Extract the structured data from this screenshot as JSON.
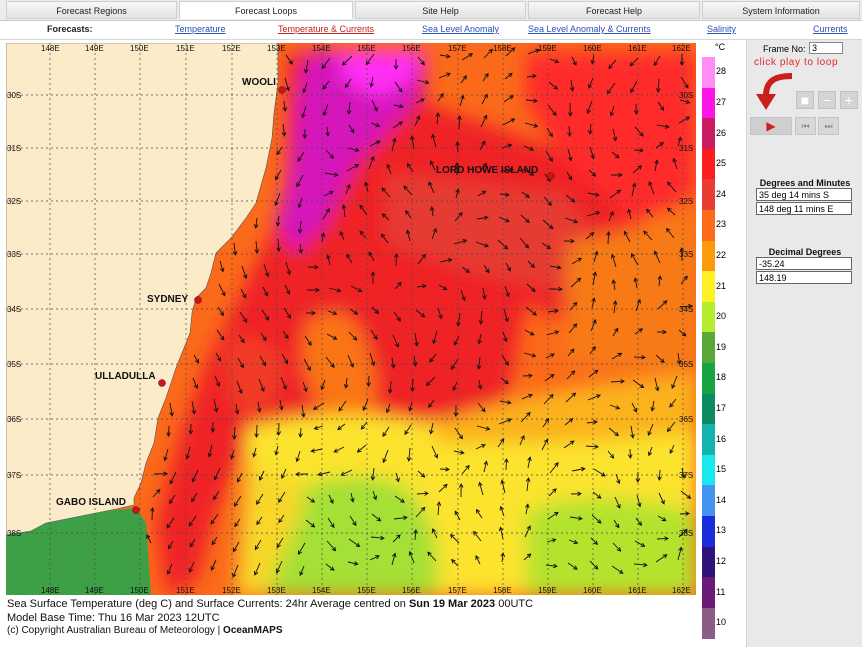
{
  "top_tabs": [
    {
      "label": "Forecast Regions"
    },
    {
      "label": "Forecast Loops"
    },
    {
      "label": "Site Help"
    },
    {
      "label": "Forecast Help"
    },
    {
      "label": "System Information"
    }
  ],
  "subnav": {
    "forecasts_label": "Forecasts:",
    "links": [
      {
        "label": "Temperature"
      },
      {
        "label": "Temperature & Currents"
      },
      {
        "label": "Sea Level Anomaly"
      },
      {
        "label": "Sea Level Anomaly & Currents"
      },
      {
        "label": "Salinity"
      },
      {
        "label": "Currents"
      }
    ]
  },
  "map": {
    "lon_labels": [
      "148E",
      "149E",
      "150E",
      "151E",
      "152E",
      "153E",
      "154E",
      "155E",
      "156E",
      "157E",
      "158E",
      "159E",
      "160E",
      "161E",
      "162E"
    ],
    "lat_labels": [
      "30S",
      "31S",
      "32S",
      "33S",
      "34S",
      "35S",
      "36S",
      "37S",
      "38S"
    ],
    "places": [
      {
        "name": "WOOLI"
      },
      {
        "name": "LORD HOWE ISLAND"
      },
      {
        "name": "SYDNEY"
      },
      {
        "name": "ULLADULLA"
      },
      {
        "name": "GABO ISLAND"
      }
    ],
    "colors": {
      "land": "#fcebc9",
      "coast_green": "#3ca048",
      "sea_orange": "#fd6e19",
      "sea_red": "#f0222b",
      "sea_magenta": "#d316b6",
      "sea_yellow": "#fdf42e",
      "sea_lime": "#a7e035"
    }
  },
  "colorbar": {
    "unit": "°C",
    "labels": [
      "28",
      "27",
      "26",
      "25",
      "24",
      "23",
      "22",
      "21",
      "20",
      "19",
      "18",
      "17",
      "16",
      "15",
      "14",
      "13",
      "12",
      "11",
      "10"
    ],
    "colors": [
      "#ff8df5",
      "#ff14e8",
      "#c91c62",
      "#fb1e1e",
      "#ea3c31",
      "#fc6b17",
      "#fc9a0e",
      "#fff026",
      "#b6ec2d",
      "#5aa838",
      "#18a442",
      "#0d8a62",
      "#13b4b0",
      "#19e9ef",
      "#4493ef",
      "#1a2cdc",
      "#2d137a",
      "#6b1a78",
      "#8d5c86"
    ]
  },
  "panel": {
    "frame_label": "Frame No:",
    "frame_value": "3",
    "hint": "click play to loop",
    "controls": {
      "stop": "■",
      "minus": "−",
      "plus": "+",
      "play": "▶",
      "prev": "⏮",
      "next": "⏭"
    },
    "dm_title": "Degrees and Minutes",
    "dm_lat": "35 deg 14 mins S",
    "dm_lon": "148 deg 11 mins E",
    "dd_title": "Decimal Degrees",
    "dd_lat": "-35.24",
    "dd_lon": "148.19"
  },
  "caption": {
    "line1_prefix": "Sea Surface Temperature (deg C) and Surface Currents: 24hr Average centred on ",
    "line1_date": "Sun 19 Mar 2023",
    "line1_suffix": " 00UTC",
    "line2": "Model Base Time: Thu 16 Mar 2023 12UTC",
    "copyright_prefix": "(c) Copyright Australian Bureau of Meteorology | ",
    "copyright_brand": "OceanMAPS"
  }
}
